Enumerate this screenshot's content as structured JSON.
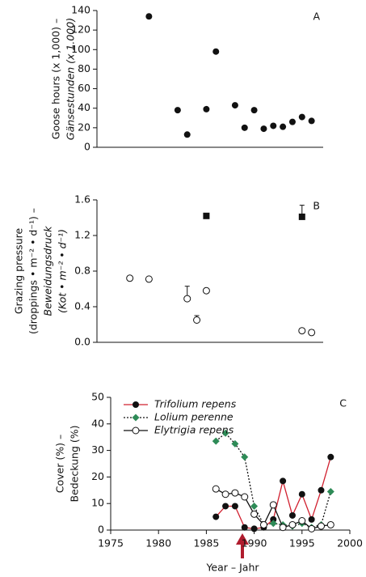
{
  "chart_data": [
    {
      "type": "scatter",
      "label": "A",
      "ylabel": [
        {
          "text": "Goose hours (x 1,000) –",
          "italic": false
        },
        {
          "text": "Gänsestunden (x 1.000)",
          "italic": true
        }
      ],
      "ylim": [
        0,
        140
      ],
      "yticks": [
        0,
        20,
        40,
        60,
        80,
        100,
        120,
        140
      ],
      "x": [
        1979,
        1982,
        1983,
        1985,
        1986,
        1988,
        1989,
        1990,
        1991,
        1992,
        1993,
        1994,
        1995,
        1996
      ],
      "series": [
        {
          "marker": "circle-filled",
          "color": "#111111",
          "values": [
            134,
            38,
            13,
            39,
            98,
            43,
            20,
            38,
            19,
            22,
            21,
            26,
            31,
            27
          ]
        }
      ]
    },
    {
      "type": "scatter",
      "label": "B",
      "ylabel": [
        {
          "text": "Grazing pressure",
          "italic": false
        },
        {
          "text": "(droppings • m⁻² • d⁻¹) –",
          "italic": false
        },
        {
          "text": "Beweidungsdruck",
          "italic": true
        },
        {
          "text": "(Kot • m⁻² • d⁻¹)",
          "italic": true
        }
      ],
      "ylim": [
        0,
        1.6
      ],
      "yticks": [
        {
          "value": 0,
          "label": "0.0"
        },
        0.4,
        0.8,
        1.2,
        1.6
      ],
      "series": [
        {
          "marker": "circle-open",
          "color": "#111111",
          "x": [
            1977,
            1979,
            1983,
            1984,
            1985,
            1995,
            1996
          ],
          "values": [
            0.72,
            0.71,
            0.49,
            0.25,
            0.58,
            0.13,
            0.11
          ],
          "errors": [
            null,
            null,
            0.14,
            0.05,
            null,
            null,
            0.03
          ]
        },
        {
          "marker": "square",
          "color": "#111111",
          "x": [
            1985,
            1995
          ],
          "values": [
            1.42,
            1.41
          ],
          "errors": [
            null,
            0.13
          ]
        }
      ]
    },
    {
      "type": "line",
      "label": "C",
      "ylabel": [
        {
          "text": "Cover (%) –",
          "italic": false
        },
        {
          "text": "Bedeckung (%)",
          "italic": false
        }
      ],
      "xlabel": "Year – Jahr",
      "xlim": [
        1975,
        2000
      ],
      "xticks": [
        1975,
        1980,
        1985,
        1990,
        1995,
        2000
      ],
      "ylim": [
        0,
        50
      ],
      "yticks": [
        0,
        10,
        20,
        30,
        40,
        50
      ],
      "legend": "upper left",
      "x": [
        1986,
        1987,
        1988,
        1989,
        1990,
        1991,
        1992,
        1993,
        1994,
        1995,
        1996,
        1997,
        1998
      ],
      "series": [
        {
          "name": "Trifolium repens",
          "marker": "circle-filled",
          "color": "#111111",
          "line": "#d1202f",
          "dash": false,
          "values": [
            5,
            9,
            9,
            1,
            0.5,
            1,
            4,
            18.5,
            5.5,
            13.5,
            4,
            15,
            27.5
          ]
        },
        {
          "name": "Lolium perenne",
          "marker": "diamond",
          "color": "#2e8b57",
          "line": "#111111",
          "dash": true,
          "values": [
            33.5,
            36.5,
            32.5,
            27.5,
            9,
            2,
            2.5,
            2,
            1.5,
            2.5,
            1,
            2,
            14.5
          ]
        },
        {
          "name": "Elytrigia repens",
          "marker": "circle-open",
          "color": "#111111",
          "line": "#111111",
          "dash": false,
          "values": [
            15.5,
            13.5,
            14,
            12.5,
            6,
            2,
            9.5,
            1,
            2,
            3.5,
            0.5,
            1.5,
            2
          ]
        }
      ]
    }
  ]
}
